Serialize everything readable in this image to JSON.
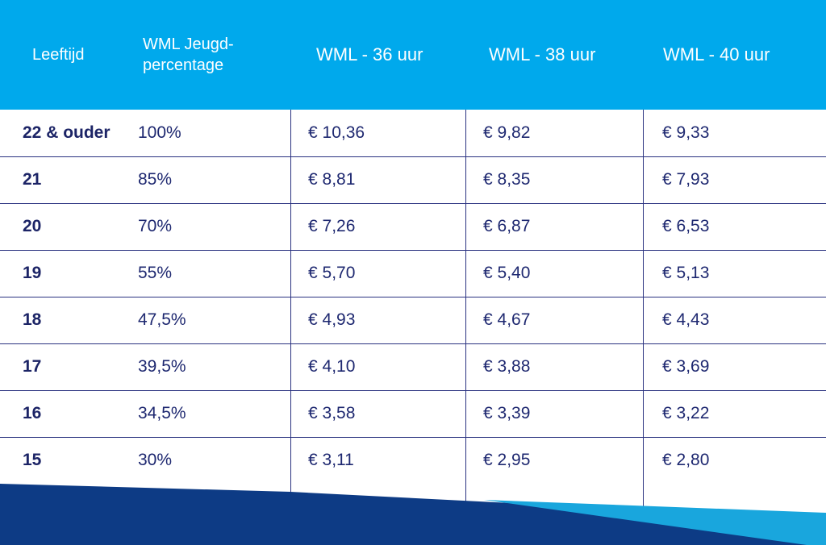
{
  "header": {
    "age": "Leeftijd",
    "percentage": "WML Jeugd-\npercentage",
    "wml36": "WML - 36 uur",
    "wml38": "WML - 38 uur",
    "wml40": "WML - 40 uur"
  },
  "rows": [
    {
      "age": "22 & ouder",
      "pct": "100%",
      "h36": "€ 10,36",
      "h38": "€ 9,82",
      "h40": "€ 9,33"
    },
    {
      "age": "21",
      "pct": "85%",
      "h36": "€ 8,81",
      "h38": "€ 8,35",
      "h40": "€ 7,93"
    },
    {
      "age": "20",
      "pct": "70%",
      "h36": "€ 7,26",
      "h38": "€ 6,87",
      "h40": "€ 6,53"
    },
    {
      "age": "19",
      "pct": "55%",
      "h36": "€ 5,70",
      "h38": "€ 5,40",
      "h40": "€ 5,13"
    },
    {
      "age": "18",
      "pct": "47,5%",
      "h36": "€ 4,93",
      "h38": "€ 4,67",
      "h40": "€ 4,43"
    },
    {
      "age": "17",
      "pct": "39,5%",
      "h36": "€ 4,10",
      "h38": "€ 3,88",
      "h40": "€ 3,69"
    },
    {
      "age": "16",
      "pct": "34,5%",
      "h36": "€ 3,58",
      "h38": "€ 3,39",
      "h40": "€ 3,22"
    },
    {
      "age": "15",
      "pct": "30%",
      "h36": "€ 3,11",
      "h38": "€ 2,95",
      "h40": "€ 2,80"
    }
  ],
  "colors": {
    "header_bg": "#00a9ec",
    "text": "#1e2870",
    "lines": "#2a3280",
    "navy_band": "#0d3b85",
    "light_band": "#19a6dd"
  }
}
